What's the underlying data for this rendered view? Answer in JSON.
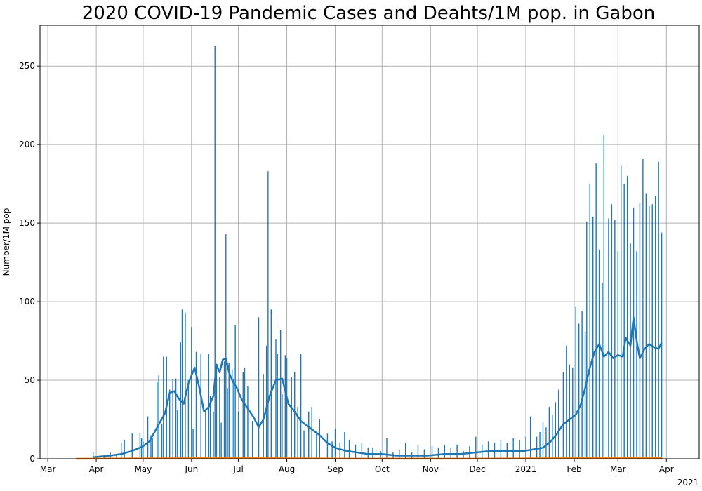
{
  "chart_data": {
    "type": "bar",
    "title": "2020 COVID-19 Pandemic Cases and Deahts/1M pop. in Gabon",
    "xlabel": "",
    "ylabel": "Number/1M pop",
    "year_label": "2021",
    "ylim": [
      0,
      276
    ],
    "xlim": [
      "2020-02-25",
      "2021-04-22"
    ],
    "y_ticks": [
      "0",
      "50",
      "100",
      "150",
      "200",
      "250"
    ],
    "x_ticks": [
      {
        "label": "Mar",
        "date": "2020-03-01"
      },
      {
        "label": "Apr",
        "date": "2020-04-01"
      },
      {
        "label": "May",
        "date": "2020-05-01"
      },
      {
        "label": "Jun",
        "date": "2020-06-01"
      },
      {
        "label": "Jul",
        "date": "2020-07-01"
      },
      {
        "label": "Aug",
        "date": "2020-08-01"
      },
      {
        "label": "Sep",
        "date": "2020-09-01"
      },
      {
        "label": "Oct",
        "date": "2020-10-01"
      },
      {
        "label": "Nov",
        "date": "2020-11-01"
      },
      {
        "label": "Dec",
        "date": "2020-12-01"
      },
      {
        "label": "2021",
        "date": "2021-01-01"
      },
      {
        "label": "Feb",
        "date": "2021-02-01"
      },
      {
        "label": "Mar",
        "date": "2021-03-01"
      },
      {
        "label": "Apr",
        "date": "2021-04-01"
      }
    ],
    "grid": true,
    "colors": {
      "cases": "#1f77b4",
      "deaths": "#ff7f0e",
      "grid": "#b0b0b0"
    },
    "series": [
      {
        "kind": "bar",
        "color": "#1f77b4",
        "points": [
          [
            "2020-03-30",
            4
          ],
          [
            "2020-04-06",
            2
          ],
          [
            "2020-04-10",
            4
          ],
          [
            "2020-04-14",
            3
          ],
          [
            "2020-04-17",
            10
          ],
          [
            "2020-04-19",
            12
          ],
          [
            "2020-04-24",
            16
          ],
          [
            "2020-04-29",
            16
          ],
          [
            "2020-04-30",
            13
          ],
          [
            "2020-05-01",
            11
          ],
          [
            "2020-05-04",
            27
          ],
          [
            "2020-05-06",
            15
          ],
          [
            "2020-05-07",
            13
          ],
          [
            "2020-05-10",
            49
          ],
          [
            "2020-05-11",
            53
          ],
          [
            "2020-05-13",
            22
          ],
          [
            "2020-05-14",
            65
          ],
          [
            "2020-05-16",
            65
          ],
          [
            "2020-05-18",
            44
          ],
          [
            "2020-05-20",
            51
          ],
          [
            "2020-05-22",
            51
          ],
          [
            "2020-05-23",
            31
          ],
          [
            "2020-05-25",
            74
          ],
          [
            "2020-05-26",
            95
          ],
          [
            "2020-05-28",
            93
          ],
          [
            "2020-05-30",
            50
          ],
          [
            "2020-06-01",
            84
          ],
          [
            "2020-06-02",
            19
          ],
          [
            "2020-06-04",
            68
          ],
          [
            "2020-06-07",
            67
          ],
          [
            "2020-06-10",
            31
          ],
          [
            "2020-06-12",
            67
          ],
          [
            "2020-06-13",
            40
          ],
          [
            "2020-06-15",
            30
          ],
          [
            "2020-06-16",
            263
          ],
          [
            "2020-06-17",
            60
          ],
          [
            "2020-06-19",
            52
          ],
          [
            "2020-06-20",
            23
          ],
          [
            "2020-06-22",
            62
          ],
          [
            "2020-06-23",
            143
          ],
          [
            "2020-06-24",
            45
          ],
          [
            "2020-06-25",
            61
          ],
          [
            "2020-06-27",
            57
          ],
          [
            "2020-06-28",
            51
          ],
          [
            "2020-06-29",
            85
          ],
          [
            "2020-07-01",
            30
          ],
          [
            "2020-07-04",
            55
          ],
          [
            "2020-07-05",
            58
          ],
          [
            "2020-07-07",
            46
          ],
          [
            "2020-07-10",
            24
          ],
          [
            "2020-07-14",
            90
          ],
          [
            "2020-07-17",
            54
          ],
          [
            "2020-07-19",
            72
          ],
          [
            "2020-07-20",
            183
          ],
          [
            "2020-07-22",
            95
          ],
          [
            "2020-07-25",
            76
          ],
          [
            "2020-07-26",
            67
          ],
          [
            "2020-07-28",
            82
          ],
          [
            "2020-07-29",
            41
          ],
          [
            "2020-07-31",
            66
          ],
          [
            "2020-08-01",
            64
          ],
          [
            "2020-08-04",
            52
          ],
          [
            "2020-08-06",
            55
          ],
          [
            "2020-08-08",
            33
          ],
          [
            "2020-08-10",
            67
          ],
          [
            "2020-08-12",
            18
          ],
          [
            "2020-08-15",
            30
          ],
          [
            "2020-08-17",
            33
          ],
          [
            "2020-08-20",
            16
          ],
          [
            "2020-08-22",
            25
          ],
          [
            "2020-08-27",
            16
          ],
          [
            "2020-08-30",
            11
          ],
          [
            "2020-09-01",
            19
          ],
          [
            "2020-09-04",
            10
          ],
          [
            "2020-09-07",
            17
          ],
          [
            "2020-09-10",
            12
          ],
          [
            "2020-09-14",
            9
          ],
          [
            "2020-09-18",
            10
          ],
          [
            "2020-09-22",
            7
          ],
          [
            "2020-09-25",
            7
          ],
          [
            "2020-09-30",
            5
          ],
          [
            "2020-10-04",
            13
          ],
          [
            "2020-10-08",
            4
          ],
          [
            "2020-10-12",
            6
          ],
          [
            "2020-10-16",
            10
          ],
          [
            "2020-10-20",
            4
          ],
          [
            "2020-10-24",
            9
          ],
          [
            "2020-10-28",
            6
          ],
          [
            "2020-11-02",
            8
          ],
          [
            "2020-11-06",
            7
          ],
          [
            "2020-11-10",
            9
          ],
          [
            "2020-11-14",
            7
          ],
          [
            "2020-11-18",
            9
          ],
          [
            "2020-11-22",
            5
          ],
          [
            "2020-11-26",
            8
          ],
          [
            "2020-11-30",
            14
          ],
          [
            "2020-12-04",
            9
          ],
          [
            "2020-12-08",
            11
          ],
          [
            "2020-12-12",
            10
          ],
          [
            "2020-12-16",
            12
          ],
          [
            "2020-12-20",
            10
          ],
          [
            "2020-12-24",
            13
          ],
          [
            "2020-12-28",
            12
          ],
          [
            "2021-01-01",
            14
          ],
          [
            "2021-01-04",
            27
          ],
          [
            "2021-01-08",
            14
          ],
          [
            "2021-01-10",
            17
          ],
          [
            "2021-01-12",
            23
          ],
          [
            "2021-01-14",
            20
          ],
          [
            "2021-01-16",
            33
          ],
          [
            "2021-01-18",
            28
          ],
          [
            "2021-01-20",
            36
          ],
          [
            "2021-01-22",
            44
          ],
          [
            "2021-01-25",
            55
          ],
          [
            "2021-01-27",
            72
          ],
          [
            "2021-01-29",
            60
          ],
          [
            "2021-01-31",
            58
          ],
          [
            "2021-02-02",
            97
          ],
          [
            "2021-02-04",
            86
          ],
          [
            "2021-02-06",
            94
          ],
          [
            "2021-02-08",
            81
          ],
          [
            "2021-02-09",
            151
          ],
          [
            "2021-02-11",
            175
          ],
          [
            "2021-02-13",
            154
          ],
          [
            "2021-02-15",
            188
          ],
          [
            "2021-02-17",
            133
          ],
          [
            "2021-02-19",
            112
          ],
          [
            "2021-02-20",
            206
          ],
          [
            "2021-02-23",
            153
          ],
          [
            "2021-02-25",
            162
          ],
          [
            "2021-02-27",
            152
          ],
          [
            "2021-03-01",
            132
          ],
          [
            "2021-03-03",
            187
          ],
          [
            "2021-03-05",
            175
          ],
          [
            "2021-03-07",
            180
          ],
          [
            "2021-03-09",
            137
          ],
          [
            "2021-03-11",
            160
          ],
          [
            "2021-03-13",
            132
          ],
          [
            "2021-03-15",
            163
          ],
          [
            "2021-03-17",
            191
          ],
          [
            "2021-03-19",
            169
          ],
          [
            "2021-03-21",
            161
          ],
          [
            "2021-03-23",
            162
          ],
          [
            "2021-03-25",
            167
          ],
          [
            "2021-03-27",
            189
          ],
          [
            "2021-03-29",
            144
          ]
        ]
      },
      {
        "kind": "line",
        "color": "#1f77b4",
        "points": [
          [
            "2020-03-30",
            1
          ],
          [
            "2020-04-10",
            2
          ],
          [
            "2020-04-17",
            3
          ],
          [
            "2020-04-24",
            5
          ],
          [
            "2020-05-01",
            8
          ],
          [
            "2020-05-05",
            11
          ],
          [
            "2020-05-10",
            20
          ],
          [
            "2020-05-15",
            29
          ],
          [
            "2020-05-18",
            42
          ],
          [
            "2020-05-21",
            43
          ],
          [
            "2020-05-24",
            38
          ],
          [
            "2020-05-27",
            35
          ],
          [
            "2020-05-30",
            48
          ],
          [
            "2020-06-03",
            58
          ],
          [
            "2020-06-06",
            45
          ],
          [
            "2020-06-09",
            30
          ],
          [
            "2020-06-12",
            33
          ],
          [
            "2020-06-15",
            40
          ],
          [
            "2020-06-17",
            60
          ],
          [
            "2020-06-19",
            55
          ],
          [
            "2020-06-21",
            63
          ],
          [
            "2020-06-23",
            64
          ],
          [
            "2020-06-25",
            55
          ],
          [
            "2020-06-27",
            50
          ],
          [
            "2020-06-30",
            45
          ],
          [
            "2020-07-03",
            38
          ],
          [
            "2020-07-07",
            32
          ],
          [
            "2020-07-11",
            26
          ],
          [
            "2020-07-14",
            20
          ],
          [
            "2020-07-17",
            25
          ],
          [
            "2020-07-21",
            40
          ],
          [
            "2020-07-25",
            50
          ],
          [
            "2020-07-29",
            51
          ],
          [
            "2020-08-02",
            35
          ],
          [
            "2020-08-06",
            30
          ],
          [
            "2020-08-10",
            24
          ],
          [
            "2020-08-14",
            21
          ],
          [
            "2020-08-18",
            18
          ],
          [
            "2020-08-22",
            15
          ],
          [
            "2020-08-27",
            10
          ],
          [
            "2020-09-01",
            7
          ],
          [
            "2020-09-08",
            5
          ],
          [
            "2020-09-15",
            4
          ],
          [
            "2020-09-22",
            3
          ],
          [
            "2020-10-01",
            3
          ],
          [
            "2020-10-10",
            2
          ],
          [
            "2020-10-20",
            2
          ],
          [
            "2020-10-30",
            2
          ],
          [
            "2020-11-10",
            3
          ],
          [
            "2020-11-20",
            3
          ],
          [
            "2020-11-30",
            4
          ],
          [
            "2020-12-10",
            5
          ],
          [
            "2020-12-20",
            5
          ],
          [
            "2020-12-31",
            5
          ],
          [
            "2021-01-06",
            6
          ],
          [
            "2021-01-12",
            7
          ],
          [
            "2021-01-17",
            11
          ],
          [
            "2021-01-21",
            16
          ],
          [
            "2021-01-25",
            22
          ],
          [
            "2021-01-29",
            25
          ],
          [
            "2021-02-02",
            28
          ],
          [
            "2021-02-05",
            34
          ],
          [
            "2021-02-08",
            45
          ],
          [
            "2021-02-11",
            58
          ],
          [
            "2021-02-14",
            68
          ],
          [
            "2021-02-17",
            73
          ],
          [
            "2021-02-20",
            65
          ],
          [
            "2021-02-23",
            68
          ],
          [
            "2021-02-26",
            64
          ],
          [
            "2021-03-01",
            66
          ],
          [
            "2021-03-04",
            65
          ],
          [
            "2021-03-06",
            77
          ],
          [
            "2021-03-09",
            72
          ],
          [
            "2021-03-11",
            90
          ],
          [
            "2021-03-13",
            75
          ],
          [
            "2021-03-15",
            64
          ],
          [
            "2021-03-18",
            70
          ],
          [
            "2021-03-21",
            73
          ],
          [
            "2021-03-24",
            71
          ],
          [
            "2021-03-27",
            70
          ],
          [
            "2021-03-29",
            74
          ]
        ]
      },
      {
        "kind": "line",
        "color": "#ff7f0e",
        "points": [
          [
            "2020-03-19",
            0
          ],
          [
            "2020-06-01",
            0.3
          ],
          [
            "2020-07-01",
            0.4
          ],
          [
            "2020-09-01",
            0.1
          ],
          [
            "2020-12-01",
            0.05
          ],
          [
            "2021-02-01",
            0.3
          ],
          [
            "2021-03-01",
            0.6
          ],
          [
            "2021-03-29",
            0.7
          ]
        ]
      }
    ]
  }
}
